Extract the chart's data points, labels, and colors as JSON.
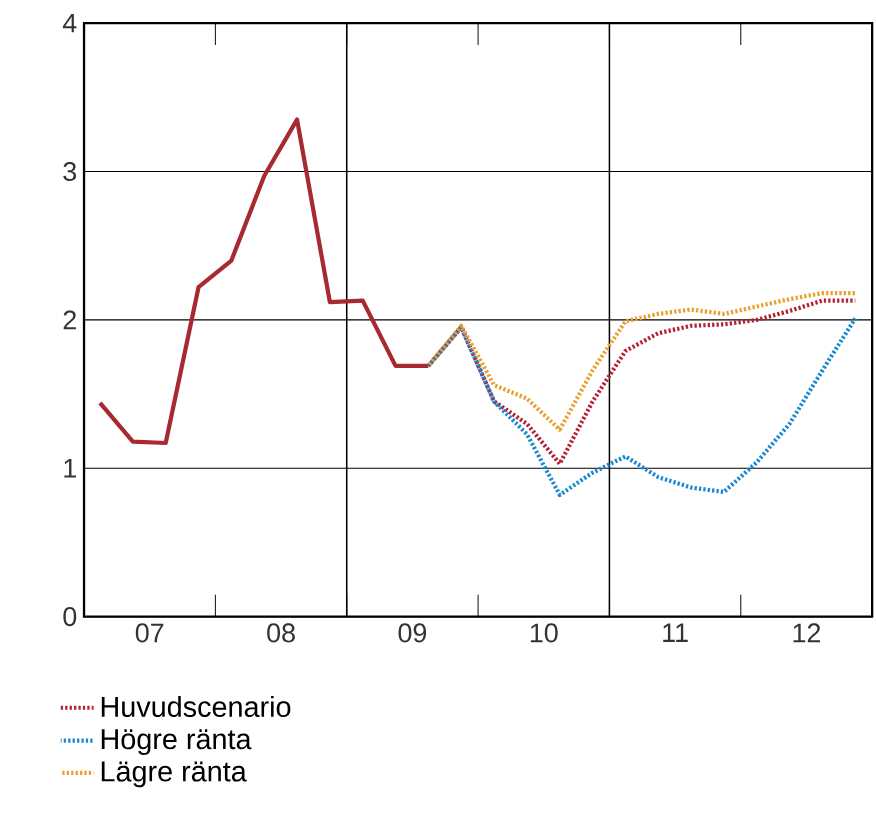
{
  "chart_data": {
    "type": "line",
    "xlim": [
      "2007-01-01",
      "2013-01-01"
    ],
    "ylim": [
      0,
      4
    ],
    "xticks": [
      {
        "value": "2007-07-01",
        "label": "07"
      },
      {
        "value": "2008-07-01",
        "label": "08"
      },
      {
        "value": "2009-07-01",
        "label": "09"
      },
      {
        "value": "2010-07-01",
        "label": "10"
      },
      {
        "value": "2011-07-01",
        "label": "11"
      },
      {
        "value": "2012-07-01",
        "label": "12"
      },
      {
        "value": "2008-01-01",
        "label": null
      },
      {
        "value": "2009-01-01",
        "label": null
      },
      {
        "value": "2010-01-01",
        "label": null
      },
      {
        "value": "2011-01-01",
        "label": null
      },
      {
        "value": "2012-01-01",
        "label": null
      }
    ],
    "yticks": [
      0,
      1,
      2,
      3,
      4
    ],
    "grid": "y",
    "legend": "bottom",
    "ref_lines": [
      {
        "axis": "x",
        "value": "2009-01-01",
        "color": "#000000"
      },
      {
        "axis": "x",
        "value": "2011-01-01",
        "color": "#000000"
      }
    ],
    "series": [
      {
        "color": "#a8292f",
        "line_style": "solid",
        "x": [
          "2007-02-15",
          "2007-05-15",
          "2007-08-15",
          "2007-11-15",
          "2008-02-15",
          "2008-05-15",
          "2008-08-15",
          "2008-11-15",
          "2009-02-15",
          "2009-05-15",
          "2009-08-15"
        ],
        "values": [
          1.44,
          1.18,
          1.17,
          2.22,
          2.4,
          2.97,
          3.35,
          2.12,
          2.13,
          1.69,
          1.69
        ]
      },
      {
        "name": "Huvudscenario",
        "color": "#b22234",
        "line_style": "dotted",
        "x": [
          "2009-08-15",
          "2009-11-15",
          "2010-02-15",
          "2010-05-15",
          "2010-08-15",
          "2010-11-15",
          "2011-02-15",
          "2011-05-15",
          "2011-08-15",
          "2011-11-15",
          "2012-02-15",
          "2012-05-15",
          "2012-08-15",
          "2012-11-15"
        ],
        "values": [
          1.69,
          1.95,
          1.45,
          1.3,
          1.03,
          1.45,
          1.79,
          1.91,
          1.96,
          1.97,
          2.0,
          2.06,
          2.13,
          2.13
        ]
      },
      {
        "name": "Högre ränta",
        "color": "#1a88d0",
        "line_style": "dotted",
        "x": [
          "2009-08-15",
          "2009-11-15",
          "2010-02-15",
          "2010-05-15",
          "2010-08-15",
          "2010-11-15",
          "2011-02-15",
          "2011-05-15",
          "2011-08-15",
          "2011-11-15",
          "2012-02-15",
          "2012-05-15",
          "2012-08-15",
          "2012-11-15"
        ],
        "values": [
          1.69,
          1.95,
          1.45,
          1.23,
          0.82,
          0.97,
          1.08,
          0.94,
          0.87,
          0.84,
          1.04,
          1.3,
          1.66,
          2.01
        ]
      },
      {
        "name": "Lägre ränta",
        "color": "#e8a030",
        "line_style": "dotted",
        "x": [
          "2009-08-15",
          "2009-11-15",
          "2010-02-15",
          "2010-05-15",
          "2010-08-15",
          "2010-11-15",
          "2011-02-15",
          "2011-05-15",
          "2011-08-15",
          "2011-11-15",
          "2012-02-15",
          "2012-05-15",
          "2012-08-15",
          "2012-11-15"
        ],
        "values": [
          1.69,
          1.96,
          1.56,
          1.47,
          1.26,
          1.66,
          1.99,
          2.04,
          2.07,
          2.04,
          2.09,
          2.14,
          2.18,
          2.18
        ]
      }
    ]
  }
}
